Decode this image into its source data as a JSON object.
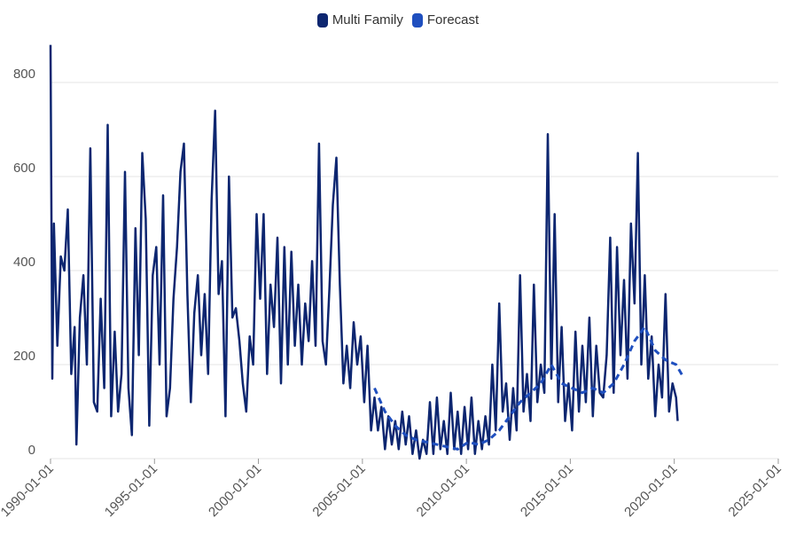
{
  "legend": {
    "multi_family": "Multi Family",
    "forecast": "Forecast"
  },
  "colors": {
    "multi_family": "#0d2670",
    "forecast": "#1f4fbf",
    "grid": "#e6e6e6"
  },
  "chart_data": {
    "type": "line",
    "title": "",
    "xlabel": "",
    "ylabel": "",
    "ylim": [
      0,
      900
    ],
    "yticks": [
      0,
      200,
      400,
      600,
      800
    ],
    "xlim": [
      "1990-01-01",
      "2025-01-01"
    ],
    "xticks": [
      "1990-01-01",
      "1995-01-01",
      "2000-01-01",
      "2005-01-01",
      "2010-01-01",
      "2015-01-01",
      "2020-01-01",
      "2025-01-01"
    ],
    "grid": true,
    "legend_position": "top-center",
    "series": [
      {
        "name": "Multi Family",
        "style": "solid",
        "points": [
          [
            "1990-01-01",
            880
          ],
          [
            "1990-02-01",
            170
          ],
          [
            "1990-03-01",
            500
          ],
          [
            "1990-05-01",
            240
          ],
          [
            "1990-07-01",
            430
          ],
          [
            "1990-09-01",
            400
          ],
          [
            "1990-11-01",
            530
          ],
          [
            "1991-01-01",
            180
          ],
          [
            "1991-03-01",
            280
          ],
          [
            "1991-04-01",
            30
          ],
          [
            "1991-06-01",
            300
          ],
          [
            "1991-08-01",
            390
          ],
          [
            "1991-10-01",
            200
          ],
          [
            "1991-12-01",
            660
          ],
          [
            "1992-02-01",
            120
          ],
          [
            "1992-04-01",
            100
          ],
          [
            "1992-06-01",
            340
          ],
          [
            "1992-08-01",
            150
          ],
          [
            "1992-10-01",
            710
          ],
          [
            "1992-12-01",
            90
          ],
          [
            "1993-02-01",
            270
          ],
          [
            "1993-04-01",
            100
          ],
          [
            "1993-06-01",
            180
          ],
          [
            "1993-08-01",
            610
          ],
          [
            "1993-10-01",
            150
          ],
          [
            "1993-12-01",
            50
          ],
          [
            "1994-02-01",
            490
          ],
          [
            "1994-04-01",
            220
          ],
          [
            "1994-06-01",
            650
          ],
          [
            "1994-08-01",
            510
          ],
          [
            "1994-10-01",
            70
          ],
          [
            "1994-12-01",
            390
          ],
          [
            "1995-02-01",
            450
          ],
          [
            "1995-04-01",
            200
          ],
          [
            "1995-06-01",
            560
          ],
          [
            "1995-08-01",
            90
          ],
          [
            "1995-10-01",
            150
          ],
          [
            "1995-12-01",
            340
          ],
          [
            "1996-02-01",
            450
          ],
          [
            "1996-04-01",
            610
          ],
          [
            "1996-06-01",
            670
          ],
          [
            "1996-08-01",
            350
          ],
          [
            "1996-10-01",
            120
          ],
          [
            "1996-12-01",
            310
          ],
          [
            "1997-02-01",
            390
          ],
          [
            "1997-04-01",
            220
          ],
          [
            "1997-06-01",
            350
          ],
          [
            "1997-08-01",
            180
          ],
          [
            "1997-10-01",
            550
          ],
          [
            "1997-12-01",
            740
          ],
          [
            "1998-02-01",
            350
          ],
          [
            "1998-04-01",
            420
          ],
          [
            "1998-06-01",
            90
          ],
          [
            "1998-08-01",
            600
          ],
          [
            "1998-10-01",
            300
          ],
          [
            "1998-12-01",
            320
          ],
          [
            "1999-02-01",
            250
          ],
          [
            "1999-04-01",
            160
          ],
          [
            "1999-06-01",
            100
          ],
          [
            "1999-08-01",
            260
          ],
          [
            "1999-10-01",
            200
          ],
          [
            "1999-12-01",
            520
          ],
          [
            "2000-02-01",
            340
          ],
          [
            "2000-04-01",
            520
          ],
          [
            "2000-06-01",
            180
          ],
          [
            "2000-08-01",
            370
          ],
          [
            "2000-10-01",
            280
          ],
          [
            "2000-12-01",
            470
          ],
          [
            "2001-02-01",
            160
          ],
          [
            "2001-04-01",
            450
          ],
          [
            "2001-06-01",
            200
          ],
          [
            "2001-08-01",
            440
          ],
          [
            "2001-10-01",
            240
          ],
          [
            "2001-12-01",
            370
          ],
          [
            "2002-02-01",
            200
          ],
          [
            "2002-04-01",
            330
          ],
          [
            "2002-06-01",
            250
          ],
          [
            "2002-08-01",
            420
          ],
          [
            "2002-10-01",
            240
          ],
          [
            "2002-12-01",
            670
          ],
          [
            "2003-02-01",
            250
          ],
          [
            "2003-04-01",
            200
          ],
          [
            "2003-06-01",
            360
          ],
          [
            "2003-08-01",
            540
          ],
          [
            "2003-10-01",
            640
          ],
          [
            "2003-12-01",
            370
          ],
          [
            "2004-02-01",
            160
          ],
          [
            "2004-04-01",
            240
          ],
          [
            "2004-06-01",
            150
          ],
          [
            "2004-08-01",
            290
          ],
          [
            "2004-10-01",
            200
          ],
          [
            "2004-12-01",
            260
          ],
          [
            "2005-02-01",
            120
          ],
          [
            "2005-04-01",
            240
          ],
          [
            "2005-06-01",
            60
          ],
          [
            "2005-08-01",
            130
          ],
          [
            "2005-10-01",
            60
          ],
          [
            "2005-12-01",
            110
          ],
          [
            "2006-02-01",
            20
          ],
          [
            "2006-04-01",
            90
          ],
          [
            "2006-06-01",
            30
          ],
          [
            "2006-08-01",
            80
          ],
          [
            "2006-10-01",
            20
          ],
          [
            "2006-12-01",
            100
          ],
          [
            "2007-02-01",
            30
          ],
          [
            "2007-04-01",
            90
          ],
          [
            "2007-06-01",
            10
          ],
          [
            "2007-08-01",
            60
          ],
          [
            "2007-10-01",
            0
          ],
          [
            "2007-12-01",
            40
          ],
          [
            "2008-02-01",
            10
          ],
          [
            "2008-04-01",
            120
          ],
          [
            "2008-06-01",
            10
          ],
          [
            "2008-08-01",
            130
          ],
          [
            "2008-10-01",
            20
          ],
          [
            "2008-12-01",
            80
          ],
          [
            "2009-02-01",
            10
          ],
          [
            "2009-04-01",
            140
          ],
          [
            "2009-06-01",
            20
          ],
          [
            "2009-08-01",
            100
          ],
          [
            "2009-10-01",
            10
          ],
          [
            "2009-12-01",
            110
          ],
          [
            "2010-02-01",
            20
          ],
          [
            "2010-04-01",
            130
          ],
          [
            "2010-06-01",
            10
          ],
          [
            "2010-08-01",
            80
          ],
          [
            "2010-10-01",
            20
          ],
          [
            "2010-12-01",
            90
          ],
          [
            "2011-02-01",
            30
          ],
          [
            "2011-04-01",
            200
          ],
          [
            "2011-06-01",
            60
          ],
          [
            "2011-08-01",
            330
          ],
          [
            "2011-10-01",
            100
          ],
          [
            "2011-12-01",
            160
          ],
          [
            "2012-02-01",
            40
          ],
          [
            "2012-04-01",
            150
          ],
          [
            "2012-06-01",
            60
          ],
          [
            "2012-08-01",
            390
          ],
          [
            "2012-10-01",
            100
          ],
          [
            "2012-12-01",
            180
          ],
          [
            "2013-02-01",
            80
          ],
          [
            "2013-04-01",
            370
          ],
          [
            "2013-06-01",
            120
          ],
          [
            "2013-08-01",
            200
          ],
          [
            "2013-10-01",
            140
          ],
          [
            "2013-12-01",
            690
          ],
          [
            "2014-02-01",
            170
          ],
          [
            "2014-04-01",
            520
          ],
          [
            "2014-06-01",
            120
          ],
          [
            "2014-08-01",
            280
          ],
          [
            "2014-10-01",
            80
          ],
          [
            "2014-12-01",
            160
          ],
          [
            "2015-02-01",
            60
          ],
          [
            "2015-04-01",
            270
          ],
          [
            "2015-06-01",
            100
          ],
          [
            "2015-08-01",
            240
          ],
          [
            "2015-10-01",
            120
          ],
          [
            "2015-12-01",
            300
          ],
          [
            "2016-02-01",
            90
          ],
          [
            "2016-04-01",
            240
          ],
          [
            "2016-06-01",
            140
          ],
          [
            "2016-08-01",
            130
          ],
          [
            "2016-10-01",
            220
          ],
          [
            "2016-12-01",
            470
          ],
          [
            "2017-02-01",
            140
          ],
          [
            "2017-04-01",
            450
          ],
          [
            "2017-06-01",
            220
          ],
          [
            "2017-08-01",
            380
          ],
          [
            "2017-10-01",
            170
          ],
          [
            "2017-12-01",
            500
          ],
          [
            "2018-02-01",
            330
          ],
          [
            "2018-04-01",
            650
          ],
          [
            "2018-06-01",
            200
          ],
          [
            "2018-08-01",
            390
          ],
          [
            "2018-10-01",
            170
          ],
          [
            "2018-12-01",
            260
          ],
          [
            "2019-02-01",
            90
          ],
          [
            "2019-04-01",
            200
          ],
          [
            "2019-06-01",
            130
          ],
          [
            "2019-08-01",
            350
          ],
          [
            "2019-10-01",
            100
          ],
          [
            "2019-12-01",
            160
          ],
          [
            "2020-02-01",
            130
          ],
          [
            "2020-03-01",
            80
          ]
        ]
      },
      {
        "name": "Forecast",
        "style": "dashed",
        "points": [
          [
            "2005-08-01",
            150
          ],
          [
            "2006-02-01",
            100
          ],
          [
            "2006-08-01",
            70
          ],
          [
            "2007-02-01",
            50
          ],
          [
            "2007-08-01",
            40
          ],
          [
            "2008-02-01",
            35
          ],
          [
            "2008-08-01",
            30
          ],
          [
            "2009-02-01",
            25
          ],
          [
            "2009-08-01",
            20
          ],
          [
            "2010-02-01",
            35
          ],
          [
            "2010-08-01",
            30
          ],
          [
            "2011-02-01",
            40
          ],
          [
            "2011-08-01",
            60
          ],
          [
            "2012-02-01",
            90
          ],
          [
            "2012-08-01",
            120
          ],
          [
            "2013-02-01",
            140
          ],
          [
            "2013-08-01",
            160
          ],
          [
            "2014-02-01",
            200
          ],
          [
            "2014-08-01",
            160
          ],
          [
            "2015-02-01",
            150
          ],
          [
            "2015-08-01",
            140
          ],
          [
            "2016-02-01",
            150
          ],
          [
            "2016-08-01",
            140
          ],
          [
            "2017-02-01",
            160
          ],
          [
            "2017-08-01",
            200
          ],
          [
            "2018-02-01",
            250
          ],
          [
            "2018-08-01",
            280
          ],
          [
            "2019-02-01",
            230
          ],
          [
            "2019-08-01",
            210
          ],
          [
            "2020-02-01",
            200
          ],
          [
            "2020-06-01",
            175
          ]
        ]
      }
    ]
  }
}
